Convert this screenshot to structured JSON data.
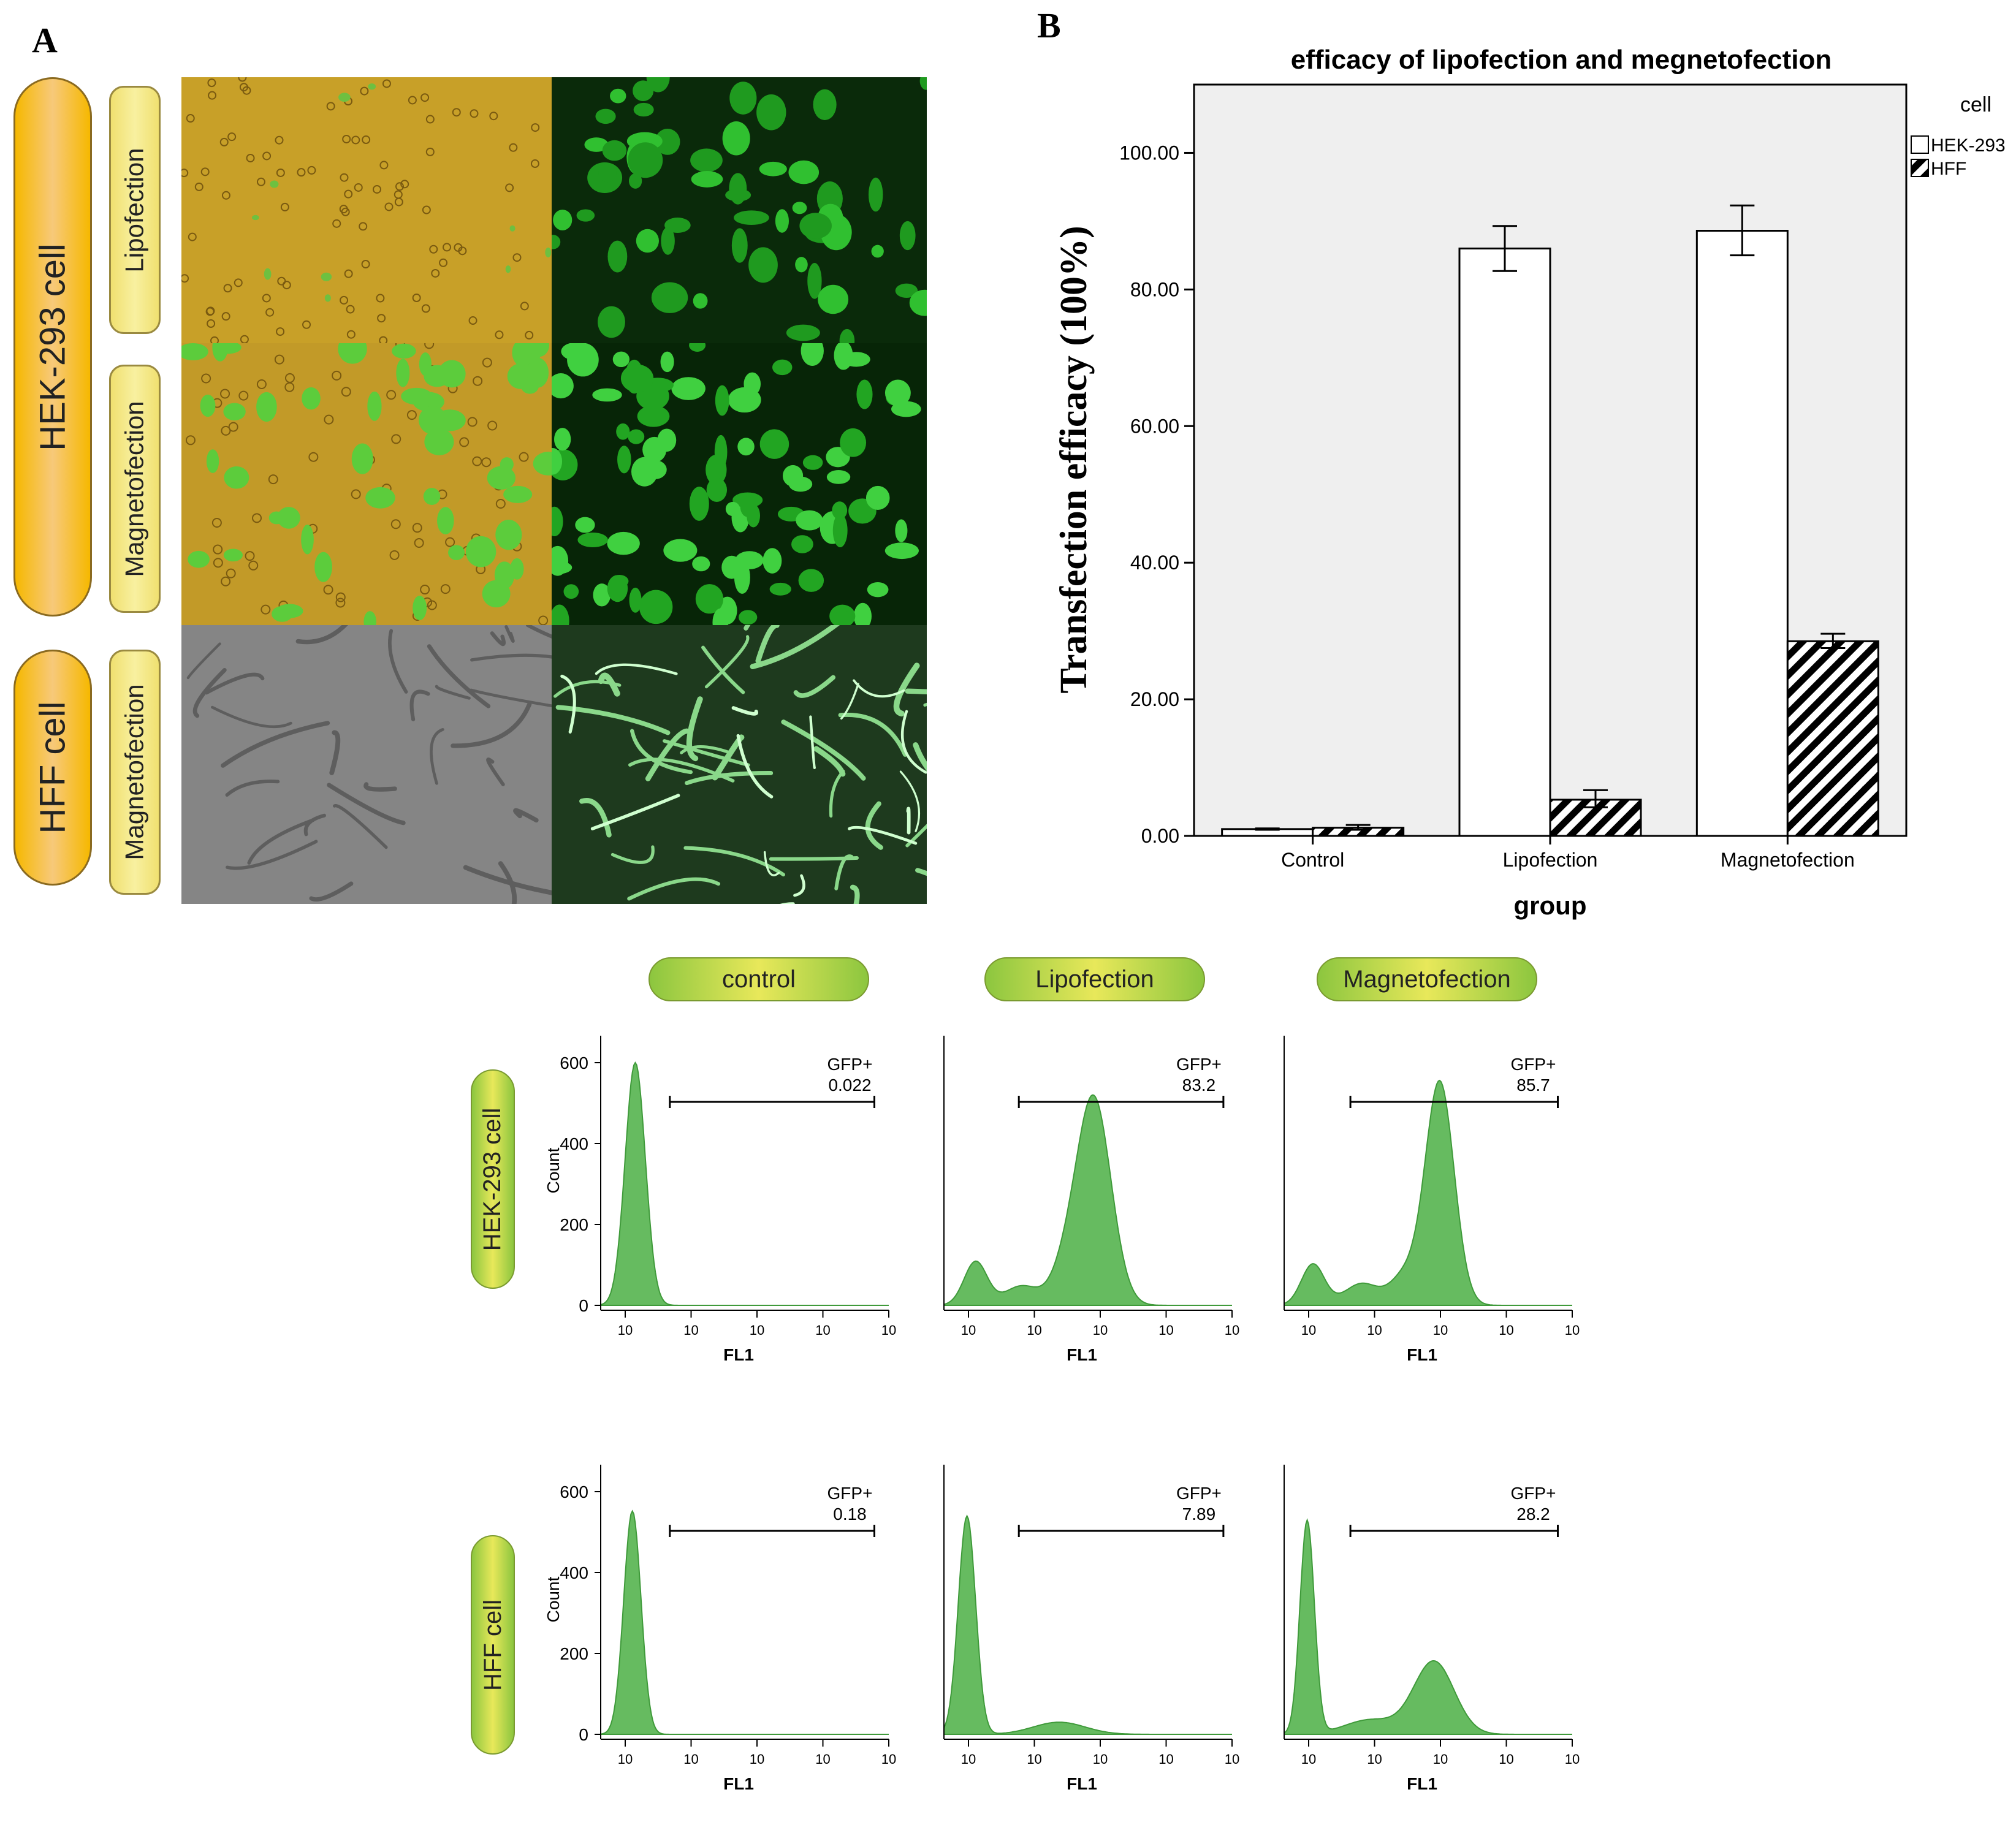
{
  "panelA": {
    "letter": "A",
    "hek_label": "HEK-293 cell",
    "hff_label": "HFF cell",
    "lipofection_label": "Lipofection",
    "magnetofection_label": "Magnetofection",
    "magnetofection_label_2": "Magnetofection"
  },
  "panelB": {
    "letter": "B",
    "legend_title": "cell",
    "legend_items": [
      "HEK-293",
      "HFF"
    ],
    "colors": {
      "hek": "#ffffff",
      "hff_hatch": "#000000",
      "plot_bg": "#efefef"
    }
  },
  "chart_data": {
    "type": "bar",
    "title": "efficacy of lipofection and megnetofection",
    "xlabel": "group",
    "ylabel": "Transfection efficacy (100%)",
    "categories": [
      "Control",
      "Lipofection",
      "Magnetofection"
    ],
    "ylim": [
      0,
      110
    ],
    "yticks": [
      "0.00",
      "20.00",
      "40.00",
      "60.00",
      "80.00",
      "100.00"
    ],
    "series": [
      {
        "name": "HEK-293",
        "values": [
          1.0,
          86.0,
          88.6
        ],
        "err_low": [
          0.9,
          82.7,
          85.0
        ],
        "err_high": [
          1.1,
          89.3,
          92.3
        ]
      },
      {
        "name": "HFF",
        "values": [
          1.2,
          5.3,
          28.5
        ],
        "err_low": [
          0.9,
          4.2,
          27.5
        ],
        "err_high": [
          1.6,
          6.7,
          29.6
        ]
      }
    ],
    "legend": "top-right",
    "grid": false
  },
  "flow": {
    "column_labels": [
      "control",
      "Lipofection",
      "Magnetofection"
    ],
    "row_labels": [
      "HEK-293 cell",
      "HFF cell"
    ],
    "gate_label": "GFP+",
    "y_axis_label": "Count",
    "x_axis_label": "FL1",
    "y_ticks": [
      "0",
      "200",
      "400",
      "600"
    ],
    "x_tick_base": "10",
    "gate_values": [
      [
        "0.022",
        "83.2",
        "85.7"
      ],
      [
        "0.18",
        "7.89",
        "28.2"
      ]
    ],
    "fill_color": "#66bb60"
  }
}
